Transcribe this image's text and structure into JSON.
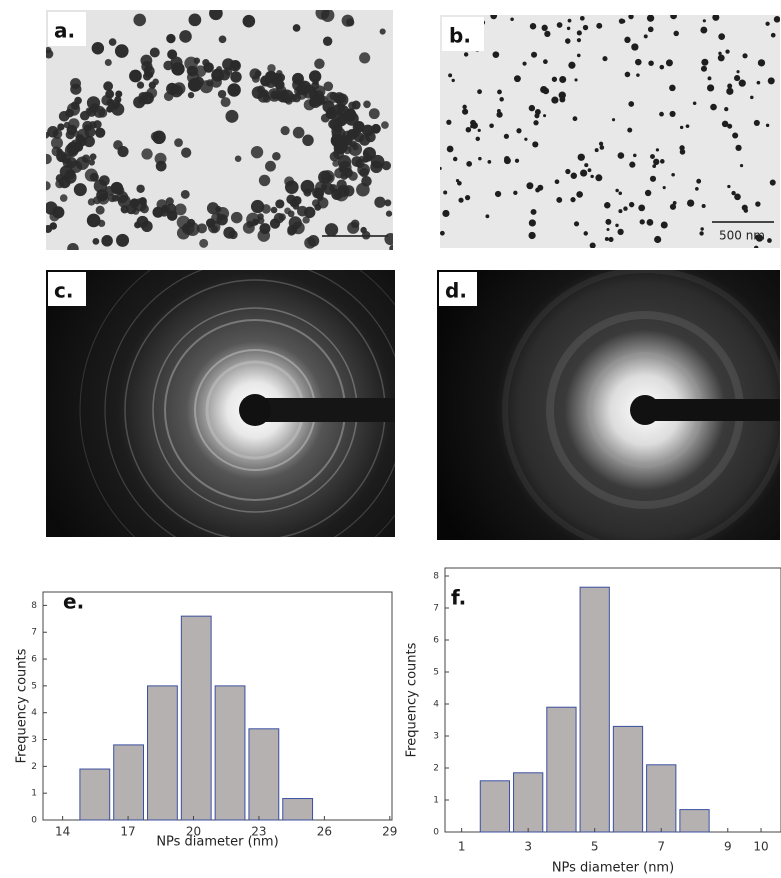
{
  "panels": [
    {
      "label": "a."
    },
    {
      "label": "b.",
      "scale_bar": "500 nm"
    },
    {
      "label": "c."
    },
    {
      "label": "d."
    }
  ],
  "chart_data": [
    {
      "type": "histogram",
      "annotation": "e.",
      "x_label": "NPs diameter (nm)",
      "y_label": "Frequency counts",
      "bins": [
        14.7,
        16.25,
        17.8,
        19.35,
        20.9,
        22.45,
        24.0,
        25.55
      ],
      "values": [
        1.9,
        2.8,
        5.0,
        7.6,
        5.0,
        3.4,
        0.8
      ],
      "color": "#b5b1b1",
      "edge_color": "#3b4fa0",
      "xlim": [
        13.1,
        29.1
      ],
      "xticks": [
        14,
        17,
        20,
        23,
        26,
        29
      ],
      "ylim": [
        0,
        8.5
      ],
      "yticks": [
        0,
        1,
        2,
        3,
        4,
        5,
        6,
        7,
        8
      ]
    },
    {
      "type": "histogram",
      "annotation": "f.",
      "x_label": "NPs diameter (nm)",
      "y_label": "Frequency counts",
      "bins": [
        1.5,
        2.5,
        3.5,
        4.5,
        5.5,
        6.5,
        7.5,
        8.5
      ],
      "values": [
        1.6,
        1.85,
        3.9,
        7.65,
        3.3,
        2.1,
        0.7
      ],
      "color": "#b5b1b1",
      "edge_color": "#3b4fa0",
      "xlim": [
        0.5,
        10.6
      ],
      "xticks": [
        1,
        3,
        5,
        7,
        9,
        10
      ],
      "ylim": [
        0,
        8.25
      ],
      "yticks": [
        0,
        1,
        2,
        3,
        4,
        5,
        6,
        7,
        8
      ]
    }
  ]
}
